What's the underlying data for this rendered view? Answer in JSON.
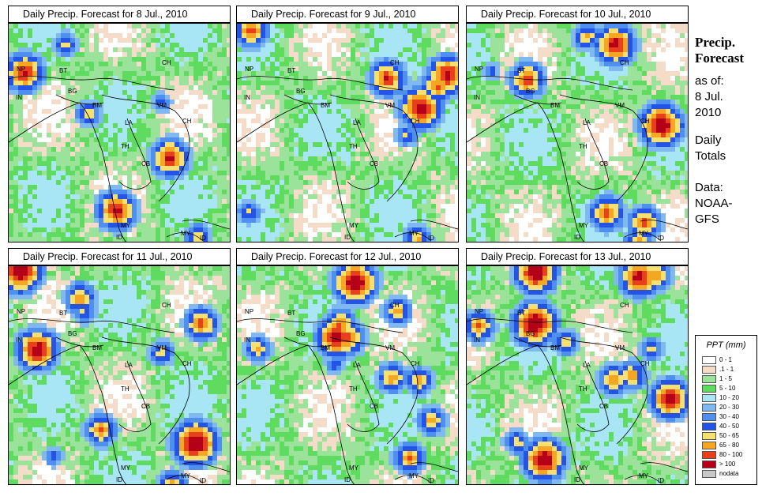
{
  "panels": [
    {
      "title": "Daily Precip. Forecast for  8 Jul., 2010"
    },
    {
      "title": "Daily Precip. Forecast for  9 Jul., 2010"
    },
    {
      "title": "Daily Precip. Forecast for  10 Jul., 2010"
    },
    {
      "title": "Daily Precip. Forecast for  11 Jul., 2010"
    },
    {
      "title": "Daily Precip. Forecast for  12 Jul., 2010"
    },
    {
      "title": "Daily Precip. Forecast for  13 Jul., 2010"
    }
  ],
  "map_labels": [
    "NP",
    "BT",
    "BG",
    "IN",
    "BM",
    "CH",
    "VM",
    "LA",
    "TH",
    "CB",
    "CH",
    "MY",
    "MY",
    "ID",
    "ID"
  ],
  "sidebar": {
    "title_line1": "Precip.",
    "title_line2": "Forecast",
    "asof_line1": "as of:",
    "asof_line2": "8 Jul.",
    "asof_line3": "2010",
    "totals_line1": "Daily",
    "totals_line2": "Totals",
    "data_line1": "Data:",
    "data_line2": "NOAA-",
    "data_line3": "GFS"
  },
  "legend": {
    "title": "PPT (mm)",
    "entries": [
      {
        "label": "0 - 1",
        "color": "#ffffff"
      },
      {
        "label": ".1 - 1",
        "color": "#f5dcc8"
      },
      {
        "label": "1 - 5",
        "color": "#9be39b"
      },
      {
        "label": "5 - 10",
        "color": "#5fdc5f"
      },
      {
        "label": "10 - 20",
        "color": "#a9e6f5"
      },
      {
        "label": "20 - 30",
        "color": "#7fb9f0"
      },
      {
        "label": "30 - 40",
        "color": "#4f8ff0"
      },
      {
        "label": "40 - 50",
        "color": "#2354e6"
      },
      {
        "label": "50 - 65",
        "color": "#f5e070"
      },
      {
        "label": "65 - 80",
        "color": "#f5a623"
      },
      {
        "label": "80 - 100",
        "color": "#e8401c"
      },
      {
        "label": "> 100",
        "color": "#b5001a"
      },
      {
        "label": "nodata",
        "color": "#c8c8c8"
      }
    ]
  }
}
